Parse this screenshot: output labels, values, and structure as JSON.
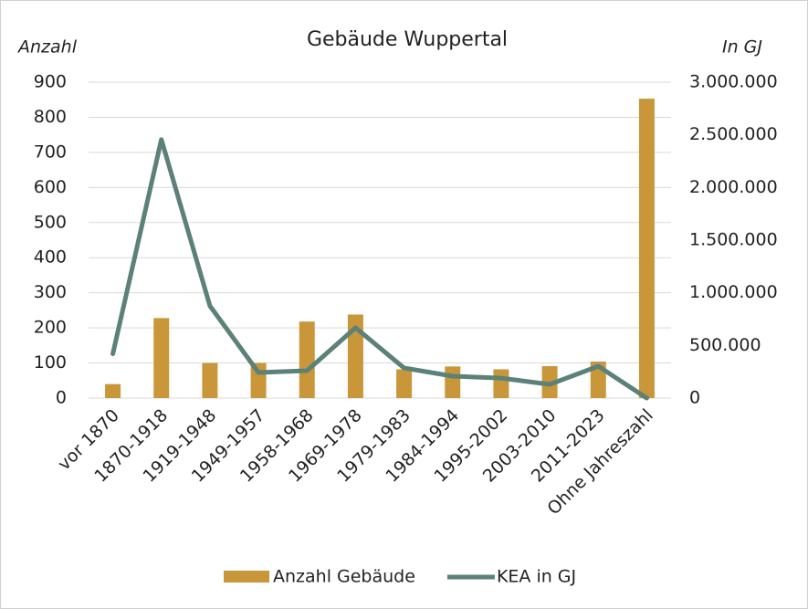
{
  "chart_data": {
    "type": "bar_line",
    "title": "Gebäude Wuppertal",
    "ylabel": "Anzahl",
    "y2label": "In GJ",
    "categories": [
      "vor 1870",
      "1870-1918",
      "1919-1948",
      "1949-1957",
      "1958-1968",
      "1969-1978",
      "1979-1983",
      "1984-1994",
      "1995-2002",
      "2003-2010",
      "2011-2023",
      "Ohne Jahreszahl"
    ],
    "series": [
      {
        "name": "Anzahl Gebäude",
        "type": "bar",
        "color": "#c9973a",
        "values": [
          40,
          228,
          100,
          100,
          218,
          238,
          82,
          90,
          82,
          91,
          104,
          853
        ]
      },
      {
        "name": "KEA in GJ",
        "type": "line",
        "axis": "y2",
        "color": "#5b8178",
        "values": [
          420000,
          2455000,
          876000,
          243000,
          260000,
          668000,
          286000,
          208000,
          190000,
          130000,
          303000,
          0
        ]
      }
    ],
    "ylim": [
      0,
      900
    ],
    "yticks": [
      0,
      100,
      200,
      300,
      400,
      500,
      600,
      700,
      800,
      900
    ],
    "y2lim": [
      0,
      3000000
    ],
    "y2ticks": [
      0,
      {
        "value": 500000,
        "label": "500.000"
      },
      {
        "value": 1000000,
        "label": "1.000.000"
      },
      {
        "value": 1500000,
        "label": "1.500.000"
      },
      {
        "value": 2000000,
        "label": "2.000.000"
      },
      {
        "value": 2500000,
        "label": "2.500.000"
      },
      {
        "value": 3000000,
        "label": "3.000.000"
      }
    ],
    "grid": true,
    "legend": "bottom"
  }
}
